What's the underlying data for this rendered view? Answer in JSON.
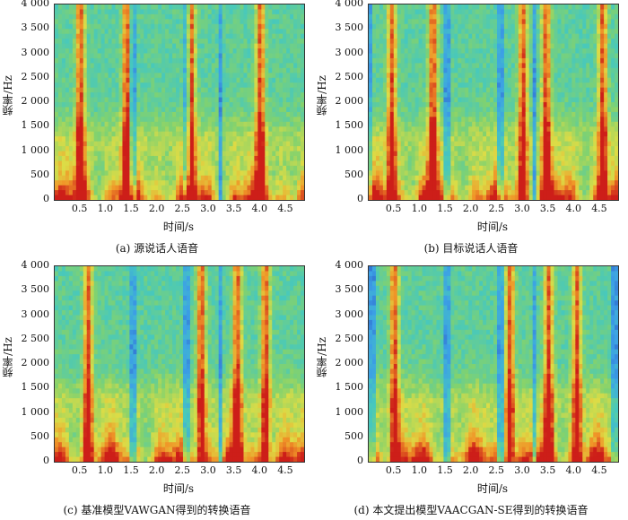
{
  "chart_data": [
    {
      "type": "heatmap",
      "caption": "(a) 源说话人语音",
      "xlabel": "时间/s",
      "ylabel": "频率/Hz",
      "xticks": [
        "0.5",
        "1.0",
        "1.5",
        "2.0",
        "2.5",
        "3.0",
        "3.5",
        "4.0",
        "4.5"
      ],
      "yticks": [
        "4 000",
        "3 500",
        "3 000",
        "2 500",
        "2 000",
        "1 500",
        "1 000",
        "500",
        "0"
      ],
      "xlim": [
        0,
        4.85
      ],
      "ylim": [
        0,
        4000
      ],
      "energy_peaks_s": [
        0.5,
        1.4,
        2.65,
        4.0
      ]
    },
    {
      "type": "heatmap",
      "caption": "(b) 目标说话人语音",
      "xlabel": "时间/s",
      "ylabel": "频率/Hz",
      "xticks": [
        "0.5",
        "1.0",
        "1.5",
        "2.0",
        "2.5",
        "3.0",
        "3.5",
        "4.0",
        "4.5"
      ],
      "yticks": [
        "4 000",
        "3 500",
        "3 000",
        "2 500",
        "2 000",
        "1 500",
        "1 000",
        "500",
        "0"
      ],
      "xlim": [
        0,
        4.85
      ],
      "ylim": [
        0,
        4000
      ],
      "energy_peaks_s": [
        0.45,
        1.25,
        3.0,
        3.45,
        4.55
      ]
    },
    {
      "type": "heatmap",
      "caption": "(c) 基准模型VAWGAN得到的转换语音",
      "xlabel": "时间/s",
      "ylabel": "频率/Hz",
      "xticks": [
        "0.5",
        "1.0",
        "1.5",
        "2.0",
        "2.5",
        "3.0",
        "3.5",
        "4.0",
        "4.5"
      ],
      "yticks": [
        "4 000",
        "3 500",
        "3 000",
        "2 500",
        "2 000",
        "1 500",
        "1 000",
        "500",
        "0"
      ],
      "xlim": [
        0,
        4.85
      ],
      "ylim": [
        0,
        4000
      ],
      "energy_peaks_s": [
        0.65,
        2.85,
        3.55,
        4.1
      ]
    },
    {
      "type": "heatmap",
      "caption": "(d) 本文提出模型VAACGAN-SE得到的转换语音",
      "xlabel": "时间/s",
      "ylabel": "频率/Hz",
      "xticks": [
        "0.5",
        "1.0",
        "1.5",
        "2.0",
        "2.5",
        "3.0",
        "3.5",
        "4.0",
        "4.5"
      ],
      "yticks": [
        "4 000",
        "3 500",
        "3 000",
        "2 500",
        "2 000",
        "1 500",
        "1 000",
        "500",
        "0"
      ],
      "xlim": [
        0,
        4.85
      ],
      "ylim": [
        0,
        4000
      ],
      "energy_peaks_s": [
        0.5,
        2.75,
        3.5,
        4.05
      ]
    }
  ]
}
